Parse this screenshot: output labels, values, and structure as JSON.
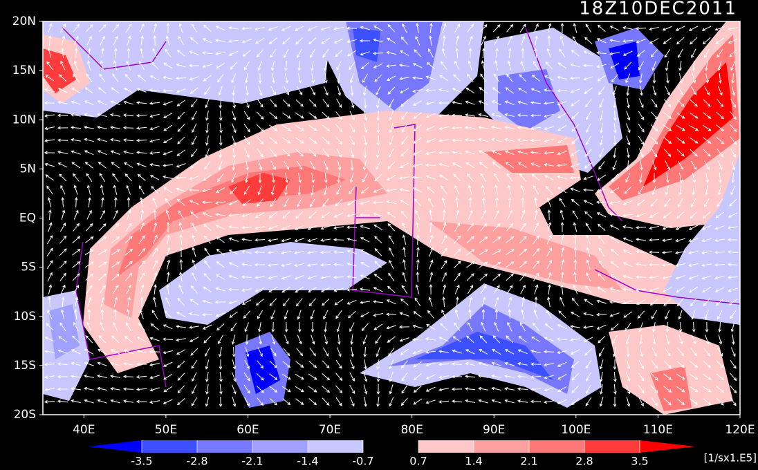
{
  "map": {
    "title": "18Z10DEC2011",
    "lon_ticks": [
      {
        "value": 40,
        "label": "40E"
      },
      {
        "value": 50,
        "label": "50E"
      },
      {
        "value": 60,
        "label": "60E"
      },
      {
        "value": 70,
        "label": "70E"
      },
      {
        "value": 80,
        "label": "80E"
      },
      {
        "value": 90,
        "label": "90E"
      },
      {
        "value": 100,
        "label": "100E"
      },
      {
        "value": 110,
        "label": "110E"
      },
      {
        "value": 120,
        "label": "120E"
      }
    ],
    "lat_ticks": [
      {
        "value": 20,
        "label": "20N"
      },
      {
        "value": 15,
        "label": "15N"
      },
      {
        "value": 10,
        "label": "10N"
      },
      {
        "value": 5,
        "label": "5N"
      },
      {
        "value": 0,
        "label": "EQ"
      },
      {
        "value": -5,
        "label": "5S"
      },
      {
        "value": -10,
        "label": "10S"
      },
      {
        "value": -15,
        "label": "15S"
      },
      {
        "value": -20,
        "label": "20S"
      }
    ],
    "xlim": [
      35,
      120
    ],
    "ylim": [
      -20,
      20
    ],
    "colorbar": {
      "levels": [
        -3.5,
        -2.8,
        -2.1,
        -1.4,
        -0.7,
        0.7,
        1.4,
        2.1,
        2.8,
        3.5
      ],
      "colors": [
        "#0000ff",
        "#3c50ff",
        "#7878ff",
        "#a0a0ff",
        "#c8c8ff",
        "#000000",
        "#ffc8c8",
        "#ffa0a0",
        "#ff7878",
        "#ff3c3c",
        "#ff0000"
      ],
      "unit": "[1/sx1.E5]"
    }
  }
}
